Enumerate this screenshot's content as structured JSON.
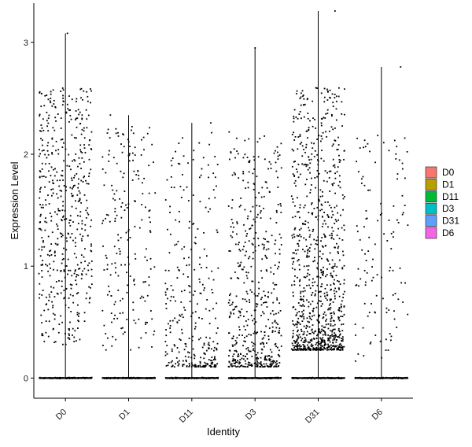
{
  "chart_data": {
    "type": "scatter",
    "subtype": "violin-jitter",
    "title": "",
    "xlabel": "Identity",
    "ylabel": "Expression Level",
    "ylim": [
      -0.18,
      3.35
    ],
    "yticks": [
      0,
      1,
      2,
      3
    ],
    "categories": [
      "D0",
      "D1",
      "D11",
      "D3",
      "D31",
      "D6"
    ],
    "legend_position": "right",
    "grid": false,
    "series": [
      {
        "name": "D0",
        "color": "#F8766D",
        "max": 3.08,
        "nonzero_count": 520,
        "dist": {
          "type": "uniform",
          "min": 0.3,
          "max": 2.6
        }
      },
      {
        "name": "D1",
        "color": "#B79F00",
        "max": 2.35,
        "nonzero_count": 200,
        "dist": {
          "type": "uniform",
          "min": 0.25,
          "max": 2.25
        }
      },
      {
        "name": "D11",
        "color": "#00BA38",
        "max": 2.28,
        "nonzero_count": 300,
        "dist": {
          "type": "skewed",
          "min": 0.1,
          "max": 2.2
        }
      },
      {
        "name": "D3",
        "color": "#00BFC4",
        "max": 2.95,
        "nonzero_count": 520,
        "dist": {
          "type": "skewed",
          "min": 0.1,
          "max": 2.2
        }
      },
      {
        "name": "D31",
        "color": "#619CFF",
        "max": 3.28,
        "nonzero_count": 950,
        "dist": {
          "type": "skewed",
          "min": 0.25,
          "max": 2.6
        }
      },
      {
        "name": "D6",
        "color": "#F564E3",
        "max": 2.78,
        "nonzero_count": 120,
        "dist": {
          "type": "uniform",
          "min": 0.15,
          "max": 2.2
        }
      }
    ],
    "zero_points_per_group": 120
  }
}
